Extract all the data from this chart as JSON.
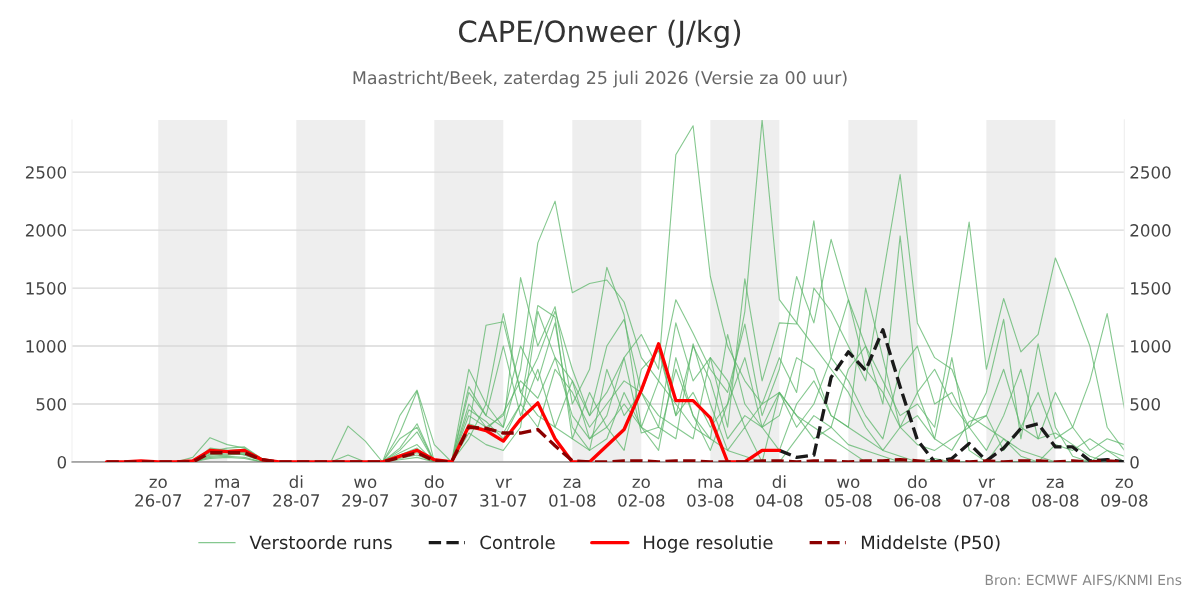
{
  "chart_data": {
    "type": "line",
    "title": "CAPE/Onweer (J/kg)",
    "subtitle": "Maastricht/Beek, zaterdag 25 juli 2026 (Versie za 00 uur)",
    "annotations": [
      "Bron: ECMWF AIFS/KNMI Ens"
    ],
    "x": [
      "2026-07-25T06:00",
      "2026-07-25T12:00",
      "2026-07-25T18:00",
      "2026-07-26T00:00",
      "2026-07-26T06:00",
      "2026-07-26T12:00",
      "2026-07-26T18:00",
      "2026-07-27T00:00",
      "2026-07-27T06:00",
      "2026-07-27T12:00",
      "2026-07-27T18:00",
      "2026-07-28T00:00",
      "2026-07-28T06:00",
      "2026-07-28T12:00",
      "2026-07-28T18:00",
      "2026-07-29T00:00",
      "2026-07-29T06:00",
      "2026-07-29T12:00",
      "2026-07-29T18:00",
      "2026-07-30T00:00",
      "2026-07-30T06:00",
      "2026-07-30T12:00",
      "2026-07-30T18:00",
      "2026-07-31T00:00",
      "2026-07-31T06:00",
      "2026-07-31T12:00",
      "2026-07-31T18:00",
      "2026-08-01T00:00",
      "2026-08-01T06:00",
      "2026-08-01T12:00",
      "2026-08-01T18:00",
      "2026-08-02T00:00",
      "2026-08-02T06:00",
      "2026-08-02T12:00",
      "2026-08-02T18:00",
      "2026-08-03T00:00",
      "2026-08-03T06:00",
      "2026-08-03T12:00",
      "2026-08-03T18:00",
      "2026-08-04T00:00",
      "2026-08-04T06:00",
      "2026-08-04T12:00",
      "2026-08-04T18:00",
      "2026-08-05T00:00",
      "2026-08-05T06:00",
      "2026-08-05T12:00",
      "2026-08-05T18:00",
      "2026-08-06T00:00",
      "2026-08-06T06:00",
      "2026-08-06T12:00",
      "2026-08-06T18:00",
      "2026-08-07T00:00",
      "2026-08-07T06:00",
      "2026-08-07T12:00",
      "2026-08-07T18:00",
      "2026-08-08T00:00",
      "2026-08-08T06:00",
      "2026-08-08T12:00",
      "2026-08-08T18:00",
      "2026-08-09T00:00"
    ],
    "series": [
      {
        "name": "Verstoorde runs",
        "color": "#5cb56a",
        "line_style": "solid",
        "values": [
          null,
          null,
          null,
          0,
          0,
          40,
          210,
          150,
          120,
          30,
          0,
          0,
          0,
          0,
          0,
          0,
          0,
          120,
          330,
          0,
          0,
          650,
          400,
          300,
          800,
          1890,
          2250,
          1460,
          1540,
          1570,
          1380,
          900,
          700,
          500,
          300,
          200,
          100,
          50,
          0,
          0,
          200,
          400,
          300,
          150,
          100,
          50,
          0,
          0,
          30,
          0,
          0,
          0,
          0,
          0,
          0,
          0,
          0,
          0,
          0,
          0
        ]
      },
      {
        "color": "#5cb56a",
        "line_style": "solid",
        "values": [
          null,
          null,
          null,
          0,
          0,
          10,
          80,
          100,
          60,
          10,
          0,
          0,
          0,
          0,
          0,
          0,
          0,
          60,
          120,
          0,
          0,
          400,
          300,
          250,
          500,
          300,
          800,
          600,
          300,
          500,
          700,
          600,
          1000,
          400,
          600,
          300,
          500,
          1300,
          2950,
          1400,
          1200,
          1000,
          800,
          600,
          300,
          100,
          50,
          0,
          0,
          0,
          0,
          0,
          0,
          0,
          0,
          0,
          0,
          0,
          0,
          0
        ]
      },
      {
        "color": "#5cb56a",
        "line_style": "solid",
        "values": [
          null,
          null,
          null,
          0,
          0,
          0,
          50,
          60,
          70,
          10,
          0,
          0,
          0,
          0,
          0,
          0,
          0,
          30,
          60,
          0,
          0,
          300,
          1180,
          1210,
          600,
          900,
          1300,
          800,
          400,
          600,
          900,
          1100,
          800,
          2650,
          2900,
          1600,
          1000,
          700,
          500,
          600,
          400,
          300,
          200,
          100,
          0,
          0,
          0,
          0,
          0,
          0,
          0,
          0,
          0,
          0,
          0,
          0,
          0,
          0,
          0,
          0
        ]
      },
      {
        "color": "#5cb56a",
        "line_style": "solid",
        "values": [
          null,
          null,
          null,
          0,
          0,
          0,
          60,
          80,
          60,
          10,
          0,
          0,
          0,
          0,
          0,
          0,
          0,
          80,
          150,
          0,
          0,
          500,
          300,
          400,
          1000,
          700,
          1200,
          300,
          100,
          800,
          400,
          600,
          400,
          300,
          200,
          900,
          700,
          300,
          500,
          900,
          600,
          1500,
          1300,
          1000,
          700,
          1600,
          2480,
          1200,
          900,
          800,
          400,
          300,
          200,
          100,
          50,
          0,
          0,
          0,
          0,
          0
        ]
      },
      {
        "color": "#5cb56a",
        "line_style": "solid",
        "values": [
          null,
          null,
          null,
          0,
          0,
          0,
          40,
          50,
          40,
          0,
          0,
          0,
          0,
          0,
          0,
          0,
          0,
          40,
          80,
          0,
          0,
          200,
          500,
          1280,
          600,
          400,
          300,
          700,
          200,
          300,
          500,
          300,
          200,
          800,
          400,
          100,
          500,
          900,
          300,
          600,
          400,
          200,
          300,
          800,
          1000,
          700,
          400,
          500,
          300,
          1100,
          2070,
          800,
          1410,
          950,
          1100,
          1760,
          1400,
          1000,
          300,
          100
        ]
      },
      {
        "color": "#5cb56a",
        "line_style": "solid",
        "values": [
          null,
          null,
          null,
          0,
          0,
          0,
          30,
          40,
          30,
          0,
          0,
          0,
          0,
          0,
          0,
          0,
          0,
          20,
          40,
          0,
          0,
          250,
          150,
          100,
          300,
          1300,
          900,
          700,
          400,
          1000,
          1230,
          600,
          300,
          1200,
          700,
          900,
          300,
          1580,
          700,
          1200,
          1190,
          2080,
          900,
          1400,
          800,
          600,
          300,
          150,
          100,
          200,
          300,
          400,
          800,
          300,
          600,
          200,
          300,
          700,
          1280,
          460
        ]
      },
      {
        "color": "#5cb56a",
        "line_style": "solid",
        "values": [
          null,
          null,
          null,
          null,
          null,
          0,
          90,
          120,
          130,
          30,
          0,
          0,
          0,
          0,
          0,
          0,
          0,
          250,
          610,
          0,
          0,
          800,
          500,
          300,
          1590,
          1000,
          1340,
          500,
          800,
          1680,
          1270,
          300,
          700,
          1400,
          1110,
          800,
          600,
          1190,
          400,
          800,
          1600,
          1200,
          1920,
          1400,
          1000,
          500,
          1950,
          600,
          800,
          500,
          300,
          600,
          1230,
          200,
          1020,
          300,
          50,
          0,
          100,
          0
        ]
      },
      {
        "color": "#5cb56a",
        "line_style": "solid",
        "values": [
          null,
          null,
          null,
          null,
          null,
          0,
          100,
          90,
          80,
          20,
          0,
          0,
          0,
          0,
          310,
          180,
          0,
          400,
          620,
          150,
          0,
          450,
          350,
          200,
          500,
          1350,
          1250,
          200,
          600,
          300,
          100,
          800,
          960,
          400,
          1000,
          700,
          200,
          400,
          300,
          100,
          500,
          700,
          400,
          300,
          200,
          100,
          300,
          400,
          200,
          900,
          100,
          0,
          200,
          50,
          0,
          150,
          100,
          200,
          100,
          50
        ]
      },
      {
        "color": "#5cb56a",
        "line_style": "solid",
        "values": [
          null,
          null,
          null,
          0,
          0,
          0,
          70,
          60,
          80,
          10,
          0,
          0,
          0,
          0,
          60,
          0,
          0,
          200,
          300,
          0,
          0,
          330,
          280,
          420,
          700,
          550,
          900,
          400,
          200,
          400,
          900,
          250,
          300,
          200,
          1020,
          500,
          100,
          300,
          0,
          600,
          300,
          500,
          900,
          700,
          400,
          200,
          800,
          1000,
          500,
          600,
          300,
          100,
          400,
          800,
          200,
          250,
          150,
          50,
          0,
          0
        ]
      },
      {
        "color": "#5cb56a",
        "line_style": "solid",
        "values": [
          null,
          null,
          null,
          null,
          null,
          0,
          120,
          100,
          110,
          20,
          0,
          0,
          0,
          0,
          0,
          0,
          0,
          100,
          260,
          0,
          0,
          600,
          400,
          1000,
          400,
          800,
          300,
          200,
          100,
          200,
          600,
          300,
          100,
          900,
          400,
          200,
          1100,
          500,
          300,
          400,
          900,
          800,
          400,
          300,
          1500,
          900,
          300,
          600,
          200,
          100,
          350,
          400,
          100,
          300,
          200,
          600,
          300,
          100,
          200,
          150
        ]
      },
      {
        "name": "Controle",
        "color": "#1a1a1a",
        "line_style": "dashed",
        "values": [
          null,
          null,
          null,
          null,
          null,
          null,
          null,
          null,
          null,
          null,
          null,
          null,
          null,
          null,
          null,
          null,
          null,
          null,
          null,
          null,
          null,
          null,
          null,
          null,
          null,
          null,
          null,
          null,
          null,
          null,
          null,
          null,
          null,
          null,
          null,
          null,
          null,
          null,
          null,
          100,
          40,
          60,
          730,
          950,
          790,
          1140,
          650,
          190,
          0,
          30,
          160,
          10,
          120,
          290,
          330,
          130,
          130,
          10,
          20,
          0
        ]
      },
      {
        "name": "Hoge resolutie",
        "color": "#ff0000",
        "line_style": "solid",
        "values": [
          0,
          0,
          10,
          0,
          0,
          10,
          100,
          90,
          100,
          20,
          0,
          0,
          0,
          0,
          0,
          0,
          0,
          50,
          100,
          20,
          0,
          310,
          270,
          180,
          370,
          510,
          200,
          0,
          0,
          140,
          280,
          620,
          1020,
          530,
          530,
          380,
          0,
          0,
          100,
          100,
          null,
          null,
          null,
          null,
          null,
          null,
          null,
          null,
          null,
          null,
          null,
          null,
          null,
          null,
          null,
          null,
          null,
          null,
          null,
          null
        ]
      },
      {
        "name": "Middelste (P50)",
        "color": "#8b0000",
        "line_style": "dashed",
        "values": [
          0,
          0,
          0,
          0,
          0,
          0,
          80,
          80,
          80,
          20,
          0,
          0,
          0,
          0,
          0,
          0,
          0,
          40,
          80,
          10,
          0,
          300,
          290,
          250,
          250,
          280,
          140,
          10,
          0,
          0,
          10,
          10,
          0,
          10,
          10,
          0,
          0,
          0,
          10,
          10,
          0,
          10,
          10,
          0,
          10,
          10,
          20,
          10,
          0,
          10,
          0,
          10,
          0,
          10,
          10,
          0,
          10,
          0,
          10,
          0
        ]
      }
    ],
    "xlim": [
      "2026-07-24T18:00",
      "2026-08-09T00:00"
    ],
    "xticks": [
      {
        "value": "2026-07-26",
        "label": "zo\n26-07"
      },
      {
        "value": "2026-07-27",
        "label": "ma\n27-07"
      },
      {
        "value": "2026-07-28",
        "label": "di\n28-07"
      },
      {
        "value": "2026-07-29",
        "label": "wo\n29-07"
      },
      {
        "value": "2026-07-30",
        "label": "do\n30-07"
      },
      {
        "value": "2026-07-31",
        "label": "vr\n31-07"
      },
      {
        "value": "2026-08-01",
        "label": "za\n01-08"
      },
      {
        "value": "2026-08-02",
        "label": "zo\n02-08"
      },
      {
        "value": "2026-08-03",
        "label": "ma\n03-08"
      },
      {
        "value": "2026-08-04",
        "label": "di\n04-08"
      },
      {
        "value": "2026-08-05",
        "label": "wo\n05-08"
      },
      {
        "value": "2026-08-06",
        "label": "do\n06-08"
      },
      {
        "value": "2026-08-07",
        "label": "vr\n07-08"
      },
      {
        "value": "2026-08-08",
        "label": "za\n08-08"
      },
      {
        "value": "2026-08-09",
        "label": "zo\n09-08"
      }
    ],
    "ylim": [
      0,
      2950
    ],
    "yticks": [
      0,
      500,
      1000,
      1500,
      2000,
      2500
    ],
    "y2lim": [
      0,
      2950
    ],
    "y2ticks": [
      0,
      500,
      1000,
      1500,
      2000,
      2500
    ],
    "bands": [
      {
        "axis": "x",
        "from": "2026-07-26",
        "to": "2026-07-27",
        "color": "#eeeeee"
      },
      {
        "axis": "x",
        "from": "2026-07-28",
        "to": "2026-07-29",
        "color": "#eeeeee"
      },
      {
        "axis": "x",
        "from": "2026-07-30",
        "to": "2026-07-31",
        "color": "#eeeeee"
      },
      {
        "axis": "x",
        "from": "2026-08-01",
        "to": "2026-08-02",
        "color": "#eeeeee"
      },
      {
        "axis": "x",
        "from": "2026-08-03",
        "to": "2026-08-04",
        "color": "#eeeeee"
      },
      {
        "axis": "x",
        "from": "2026-08-05",
        "to": "2026-08-06",
        "color": "#eeeeee"
      },
      {
        "axis": "x",
        "from": "2026-08-07",
        "to": "2026-08-08",
        "color": "#eeeeee"
      }
    ],
    "grid": "y",
    "legend": "bottom"
  }
}
